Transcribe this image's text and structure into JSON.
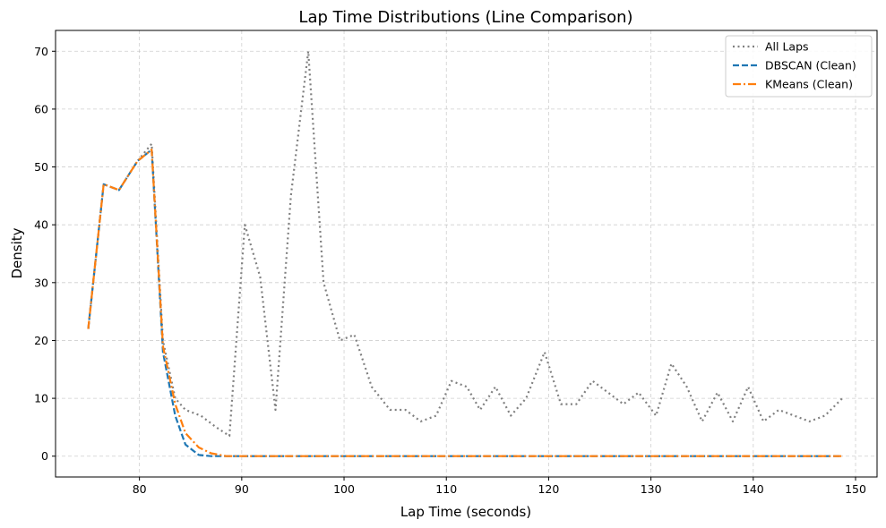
{
  "chart_data": {
    "type": "line",
    "title": "Lap Time Distributions (Line Comparison)",
    "xlabel": "Lap Time (seconds)",
    "ylabel": "Density",
    "xlim": [
      71.8,
      152.1
    ],
    "ylim": [
      -3.6,
      73.6
    ],
    "xticks": [
      80,
      90,
      100,
      110,
      120,
      130,
      140,
      150
    ],
    "yticks": [
      0,
      10,
      20,
      30,
      40,
      50,
      60,
      70
    ],
    "grid": true,
    "legend_position": "top-right",
    "series": [
      {
        "name": "All Laps",
        "color": "#808080",
        "style": "dotted",
        "x": [
          75.0,
          76.5,
          78.0,
          79.8,
          81.2,
          82.3,
          83.5,
          84.5,
          86.0,
          87.5,
          88.8,
          90.3,
          91.8,
          93.3,
          94.8,
          96.5,
          98.0,
          99.6,
          101.0,
          102.7,
          104.5,
          106.0,
          107.5,
          109.0,
          110.5,
          112.0,
          113.3,
          114.8,
          116.3,
          117.8,
          119.6,
          121.2,
          122.7,
          124.3,
          125.8,
          127.3,
          128.8,
          130.5,
          132.0,
          133.5,
          135.0,
          136.5,
          138.0,
          139.5,
          141.0,
          142.5,
          144.0,
          145.5,
          147.0,
          148.7
        ],
        "y": [
          22,
          47,
          46,
          51,
          54,
          20,
          10,
          8,
          7,
          5,
          3.5,
          40,
          31,
          8,
          45,
          70,
          30,
          20,
          21,
          12,
          8,
          8,
          6,
          7,
          13,
          12,
          8,
          12,
          7,
          10,
          18,
          9,
          9,
          13,
          11,
          9,
          11,
          7,
          16,
          12,
          6,
          11,
          6,
          12,
          6,
          8,
          7,
          6,
          7,
          10
        ]
      },
      {
        "name": "DBSCAN (Clean)",
        "color": "#1f77b4",
        "style": "dashed",
        "x": [
          75.0,
          76.5,
          78.0,
          79.8,
          81.2,
          82.3,
          83.5,
          84.5,
          85.8,
          87.0,
          148.7
        ],
        "y": [
          22,
          47,
          46,
          51,
          53,
          18,
          7,
          2,
          0.2,
          0,
          0
        ]
      },
      {
        "name": "KMeans (Clean)",
        "color": "#ff7f0e",
        "style": "dashdot",
        "x": [
          75.0,
          76.5,
          78.0,
          79.8,
          81.2,
          82.3,
          83.5,
          84.5,
          85.8,
          87.0,
          88.5,
          148.7
        ],
        "y": [
          22,
          47,
          46,
          51,
          53,
          19,
          9,
          4,
          1.5,
          0.5,
          0,
          0
        ]
      }
    ]
  }
}
